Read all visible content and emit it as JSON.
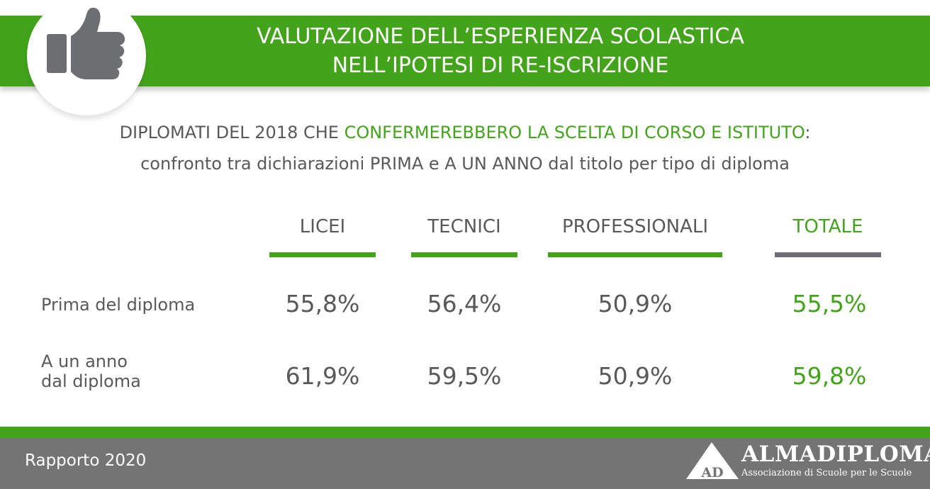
{
  "header": {
    "title_line1": "VALUTAZIONE DELL’ESPERIENZA SCOLASTICA",
    "title_line2": "NELL’IPOTESI DI RE-ISCRIZIONE",
    "icon": "thumbs-up-icon"
  },
  "subtitle": {
    "line1_prefix": "DIPLOMATI DEL 2018 CHE ",
    "line1_highlight": "CONFERMEREBBERO LA SCELTA DI CORSO E ISTITUTO",
    "line1_suffix": ":",
    "line2": "confronto tra dichiarazioni PRIMA e A UN ANNO dal titolo per tipo di diploma"
  },
  "colors": {
    "accent_green": "#43a41c",
    "text_grey": "#58595b",
    "footer_grey": "#747474"
  },
  "chart_data": {
    "type": "table",
    "columns": [
      "LICEI",
      "TECNICI",
      "PROFESSIONALI",
      "TOTALE"
    ],
    "rows": [
      {
        "label_lines": [
          "Prima del diploma"
        ],
        "values": [
          "55,8%",
          "56,4%",
          "50,9%",
          "55,5%"
        ]
      },
      {
        "label_lines": [
          "A un anno",
          "dal diploma"
        ],
        "values": [
          "61,9%",
          "59,5%",
          "50,9%",
          "59,8%"
        ]
      }
    ]
  },
  "footer": {
    "report": "Rapporto 2020",
    "logo_initials": "AD",
    "logo_name": "ALMADIPLOMA",
    "logo_tagline": "Associazione di Scuole per le Scuole"
  }
}
